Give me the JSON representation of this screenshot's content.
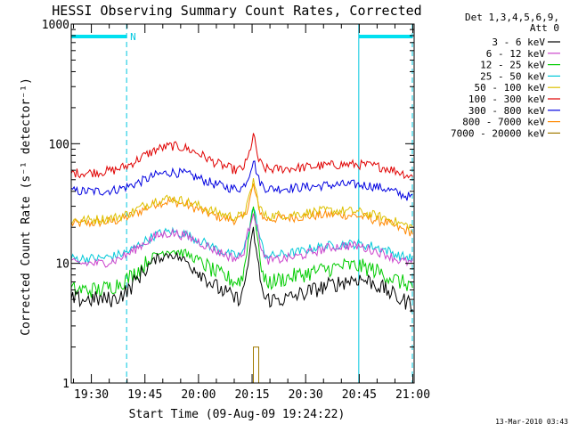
{
  "chart_data": {
    "type": "line",
    "title": "HESSI Observing Summary Count Rates, Corrected",
    "xlabel": "Start Time (09-Aug-09 19:24:22)",
    "ylabel": "Corrected Count Rate (s⁻¹ detector⁻¹)",
    "y_scale": "log",
    "ylim": [
      1,
      1000
    ],
    "xlim_minutes": [
      0,
      96
    ],
    "x_ticks": [
      {
        "label": "19:30",
        "minute": 5.63
      },
      {
        "label": "19:45",
        "minute": 20.63
      },
      {
        "label": "20:00",
        "minute": 35.63
      },
      {
        "label": "20:15",
        "minute": 50.63
      },
      {
        "label": "20:30",
        "minute": 65.63
      },
      {
        "label": "20:45",
        "minute": 80.63
      },
      {
        "label": "21:00",
        "minute": 95.63
      }
    ],
    "y_ticks": [
      {
        "label": "1",
        "value": 1
      },
      {
        "label": "10",
        "value": 10
      },
      {
        "label": "100",
        "value": 100
      },
      {
        "label": "1000",
        "value": 1000
      }
    ],
    "legend": {
      "placement": "top-right",
      "header": [
        "Det 1,3,4,5,6,9,",
        "Att 0"
      ]
    },
    "annotations": {
      "night_marker": "N",
      "timestamp": "13-Mar-2010 03:43"
    },
    "night_intervals_minutes": [
      [
        0,
        15.5
      ],
      [
        80.5,
        95.5
      ]
    ],
    "x": [
      0,
      4,
      8,
      12,
      16,
      20,
      24,
      28,
      32,
      36,
      40,
      44,
      46,
      48,
      49.5,
      51,
      52.5,
      54,
      56,
      60,
      64,
      68,
      72,
      76,
      80,
      84,
      88,
      92,
      96
    ],
    "series": [
      {
        "name": "3 - 6 keV",
        "color": "#000000",
        "values": [
          5,
          5,
          5,
          5,
          6,
          8.5,
          11,
          12,
          10.5,
          8.5,
          6.5,
          5.5,
          5,
          5.5,
          10,
          19,
          9,
          5,
          5,
          5,
          5.5,
          6,
          6.5,
          7,
          7.5,
          7,
          6,
          5,
          4.5
        ]
      },
      {
        "name": "6 - 12 keV",
        "color": "#cc44cc",
        "values": [
          10,
          10,
          10,
          10.5,
          12,
          14.5,
          17,
          18,
          17,
          15,
          13,
          11.5,
          11,
          11.5,
          18,
          28,
          17,
          11,
          10.5,
          11,
          11.5,
          12.5,
          13.5,
          14,
          14,
          13,
          12,
          10.5,
          10
        ]
      },
      {
        "name": "12 - 25 keV",
        "color": "#00cc00",
        "values": [
          6,
          6,
          6,
          6.5,
          7.5,
          9.5,
          12,
          13,
          12,
          10.5,
          8.5,
          7.5,
          7,
          7.5,
          15,
          32,
          13,
          7,
          7,
          7.5,
          8,
          8.5,
          9,
          9.5,
          9.5,
          9,
          8,
          7,
          6.5
        ]
      },
      {
        "name": "25 - 50 keV",
        "color": "#00c8d8",
        "values": [
          11,
          11,
          11,
          11.5,
          12.5,
          15,
          17.5,
          18.5,
          17.5,
          15.5,
          13.5,
          12,
          11.5,
          12,
          18,
          30,
          18,
          12,
          11.5,
          12,
          12.5,
          13.5,
          14,
          14.5,
          14.5,
          14,
          13,
          11.5,
          11
        ]
      },
      {
        "name": "50 - 100 keV",
        "color": "#ddc000",
        "values": [
          23,
          23,
          23.5,
          24,
          26,
          30,
          34,
          35,
          33,
          30,
          27,
          25,
          24.5,
          25,
          32,
          50,
          31,
          25,
          25,
          25.5,
          26,
          27,
          27.5,
          27.5,
          27,
          25.5,
          24,
          21.5,
          20
        ]
      },
      {
        "name": "100 - 300 keV",
        "color": "#e00000",
        "values": [
          57,
          57,
          58,
          60,
          66,
          78,
          90,
          96,
          92,
          82,
          70,
          63,
          60,
          62,
          75,
          118,
          72,
          62,
          61,
          62,
          63,
          64.5,
          66,
          67,
          67,
          65.5,
          63,
          58,
          52
        ]
      },
      {
        "name": "300 - 800 keV",
        "color": "#0000e0",
        "values": [
          40,
          40,
          40,
          41,
          44,
          49,
          55,
          58,
          56,
          51,
          46,
          43,
          42,
          43,
          52,
          74,
          50,
          43,
          42,
          42.5,
          43,
          44,
          45,
          45.5,
          45.5,
          44.5,
          42,
          38,
          35
        ]
      },
      {
        "name": "800 - 7000 keV",
        "color": "#ff8800",
        "values": [
          21.5,
          21.5,
          22,
          22.5,
          24.5,
          28,
          32,
          33,
          31,
          28,
          25,
          23.5,
          23,
          23.5,
          30,
          45,
          29,
          23.5,
          23.5,
          24,
          24.5,
          25,
          25.5,
          25.5,
          25,
          23.5,
          22,
          19.5,
          18
        ]
      },
      {
        "name": "7000 - 20000 keV",
        "color": "#a07a00",
        "values": [
          null,
          null,
          null,
          null,
          null,
          null,
          1,
          1,
          1,
          1,
          1,
          1,
          1,
          1,
          1,
          2,
          1,
          1,
          null,
          null,
          null,
          null,
          null,
          null,
          null,
          null,
          null,
          null,
          null
        ]
      }
    ]
  }
}
